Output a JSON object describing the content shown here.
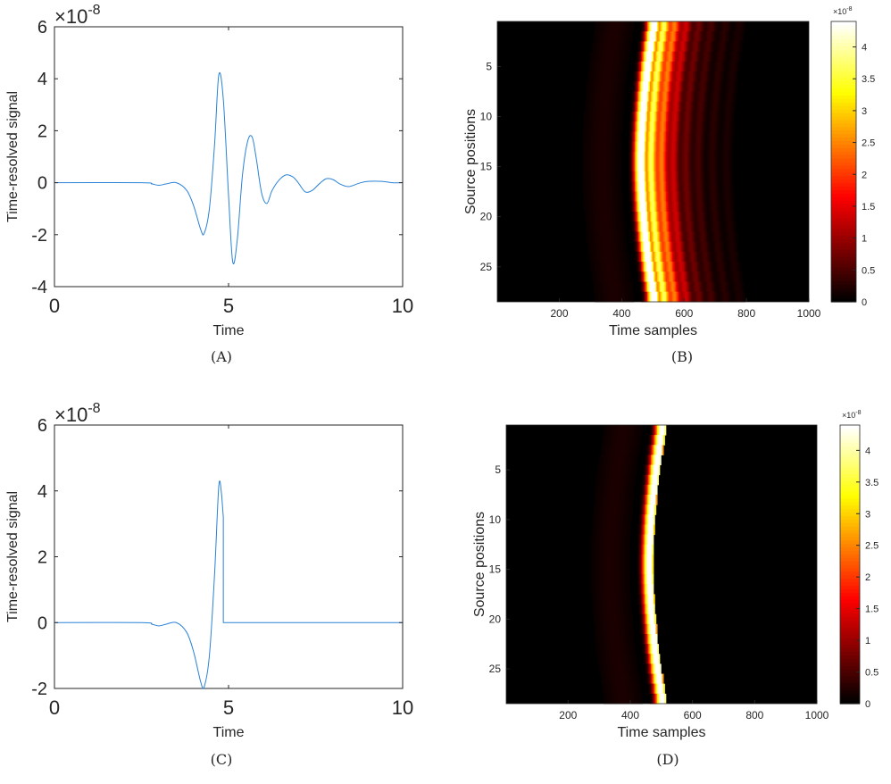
{
  "chart_data": [
    {
      "id": "A",
      "type": "line",
      "caption": "(A)",
      "xlabel": "Time",
      "ylabel": "Time-resolved signal",
      "y_exponent": "×10",
      "y_exponent_power": "-8",
      "xlim": [
        0,
        10
      ],
      "ylim": [
        -4,
        6
      ],
      "xticks": [
        "0",
        "5",
        "10"
      ],
      "yticks": [
        "-4",
        "-2",
        "0",
        "2",
        "4",
        "6"
      ],
      "line_color": "#2a82d6",
      "x": [
        0,
        2.5,
        2.8,
        3.0,
        3.2,
        3.5,
        3.8,
        4.0,
        4.2,
        4.3,
        4.45,
        4.6,
        4.72,
        4.85,
        5.0,
        5.12,
        5.25,
        5.4,
        5.55,
        5.68,
        5.8,
        5.95,
        6.1,
        6.25,
        6.45,
        6.65,
        6.85,
        7.0,
        7.2,
        7.4,
        7.6,
        7.8,
        8.0,
        8.2,
        8.45,
        8.75,
        9.0,
        9.4,
        9.7,
        10
      ],
      "y": [
        0,
        0,
        -0.05,
        -0.1,
        -0.05,
        0,
        -0.3,
        -0.9,
        -1.8,
        -1.95,
        -1.0,
        1.5,
        4.15,
        3.2,
        -0.5,
        -3.05,
        -2.2,
        0.3,
        1.6,
        1.75,
        0.9,
        -0.4,
        -0.8,
        -0.3,
        0.1,
        0.3,
        0.22,
        0,
        -0.35,
        -0.3,
        -0.05,
        0.15,
        0.12,
        -0.05,
        -0.15,
        -0.02,
        0.05,
        0.05,
        0,
        0
      ]
    },
    {
      "id": "B",
      "type": "heatmap",
      "caption": "(B)",
      "xlabel": "Time samples",
      "ylabel": "Source positions",
      "xlim": [
        1,
        1000
      ],
      "ylim": [
        1,
        28
      ],
      "xticks": [
        "200",
        "400",
        "600",
        "800",
        "1000"
      ],
      "yticks": [
        "5",
        "10",
        "15",
        "20",
        "25"
      ],
      "colormap": "hot",
      "colorbar_ticks": [
        "0",
        "0.5",
        "1",
        "1.5",
        "2",
        "2.5",
        "3",
        "3.5",
        "4"
      ],
      "colorbar_exponent": "×10",
      "colorbar_exponent_power": "-8",
      "colorbar_max": 4.4,
      "front_center_sample": [
        505,
        493,
        483,
        475,
        469,
        465,
        463,
        465,
        469,
        475,
        483,
        493,
        505
      ],
      "front_rows": [
        1,
        3.25,
        5.5,
        7.75,
        10,
        12.25,
        14.5,
        16.75,
        19,
        21.25,
        23.5,
        25.75,
        28
      ],
      "bands": [
        {
          "offset": -130,
          "width": 40,
          "level": 0.04
        },
        {
          "offset": -15,
          "width": 10,
          "level": 0.75
        },
        {
          "offset": 0,
          "width": 7,
          "level": 1.0
        },
        {
          "offset": 28,
          "width": 12,
          "level": 0.85
        },
        {
          "offset": 63,
          "width": 12,
          "level": 0.55
        },
        {
          "offset": 100,
          "width": 12,
          "level": 0.3
        },
        {
          "offset": 140,
          "width": 12,
          "level": 0.16
        },
        {
          "offset": 180,
          "width": 12,
          "level": 0.1
        },
        {
          "offset": 225,
          "width": 12,
          "level": 0.06
        },
        {
          "offset": 270,
          "width": 12,
          "level": 0.04
        }
      ]
    },
    {
      "id": "C",
      "type": "line",
      "caption": "(C)",
      "xlabel": "Time",
      "ylabel": "Time-resolved signal",
      "y_exponent": "×10",
      "y_exponent_power": "-8",
      "xlim": [
        0,
        10
      ],
      "ylim": [
        -2,
        6
      ],
      "xticks": [
        "0",
        "5",
        "10"
      ],
      "yticks": [
        "-2",
        "0",
        "2",
        "4",
        "6"
      ],
      "line_color": "#2a82d6",
      "x": [
        0,
        2.5,
        2.8,
        3.0,
        3.2,
        3.5,
        3.8,
        4.0,
        4.2,
        4.3,
        4.45,
        4.6,
        4.72,
        4.8,
        4.85,
        4.85,
        5.2,
        10
      ],
      "y": [
        0,
        0,
        -0.05,
        -0.1,
        -0.05,
        0,
        -0.3,
        -0.9,
        -1.8,
        -1.95,
        -1.0,
        1.5,
        4.15,
        3.9,
        3.2,
        0,
        0,
        0
      ]
    },
    {
      "id": "D",
      "type": "heatmap",
      "caption": "(D)",
      "xlabel": "Time samples",
      "ylabel": "Source positions",
      "xlim": [
        1,
        1000
      ],
      "ylim": [
        1,
        28
      ],
      "xticks": [
        "200",
        "400",
        "600",
        "800",
        "1000"
      ],
      "yticks": [
        "5",
        "10",
        "15",
        "20",
        "25"
      ],
      "colormap": "hot",
      "colorbar_ticks": [
        "0",
        "0.5",
        "1",
        "1.5",
        "2",
        "2.5",
        "3",
        "3.5",
        "4"
      ],
      "colorbar_exponent": "×10",
      "colorbar_exponent_power": "-8",
      "colorbar_max": 4.4,
      "front_center_sample": [
        505,
        493,
        483,
        475,
        469,
        465,
        463,
        465,
        469,
        475,
        483,
        493,
        505
      ],
      "front_rows": [
        1,
        3.25,
        5.5,
        7.75,
        10,
        12.25,
        14.5,
        16.75,
        19,
        21.25,
        23.5,
        25.75,
        28
      ],
      "cut_after_offset": 8,
      "bands": [
        {
          "offset": -130,
          "width": 40,
          "level": 0.04
        },
        {
          "offset": -15,
          "width": 10,
          "level": 0.75
        },
        {
          "offset": 0,
          "width": 7,
          "level": 1.0
        }
      ]
    }
  ]
}
